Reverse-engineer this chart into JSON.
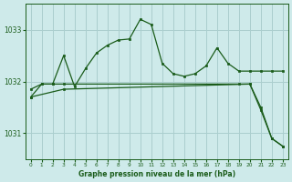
{
  "title": "Graphe pression niveau de la mer (hPa)",
  "background_color": "#ceeaea",
  "grid_color": "#aacece",
  "line_color": "#1a5c1a",
  "xlim": [
    -0.5,
    23.5
  ],
  "ylim": [
    1030.5,
    1033.5
  ],
  "yticks": [
    1031,
    1032,
    1033
  ],
  "xticks": [
    0,
    1,
    2,
    3,
    4,
    5,
    6,
    7,
    8,
    9,
    10,
    11,
    12,
    13,
    14,
    15,
    16,
    17,
    18,
    19,
    20,
    21,
    22,
    23
  ],
  "series1": {
    "x": [
      0,
      1,
      2,
      3,
      4,
      5,
      6,
      7,
      8,
      9,
      10,
      11,
      12,
      13,
      14,
      15,
      16,
      17,
      18,
      19,
      20,
      21,
      22,
      23
    ],
    "y": [
      1031.85,
      1031.95,
      1031.95,
      1032.5,
      1031.9,
      1032.25,
      1032.55,
      1032.7,
      1032.8,
      1032.82,
      1033.2,
      1033.1,
      1032.35,
      1032.15,
      1032.1,
      1032.15,
      1032.3,
      1032.65,
      1032.35,
      1032.2,
      1032.2,
      1032.2,
      1032.2,
      1032.2
    ]
  },
  "series2": {
    "x": [
      0,
      3,
      20,
      21,
      22,
      23
    ],
    "y": [
      1031.7,
      1031.85,
      1031.95,
      1031.45,
      1030.9,
      1030.75
    ]
  },
  "series3": {
    "x": [
      0,
      1,
      2,
      3,
      19,
      20,
      21,
      22,
      23
    ],
    "y": [
      1031.7,
      1031.95,
      1031.95,
      1031.95,
      1031.95,
      1031.95,
      1031.5,
      1030.9,
      1030.75
    ]
  }
}
